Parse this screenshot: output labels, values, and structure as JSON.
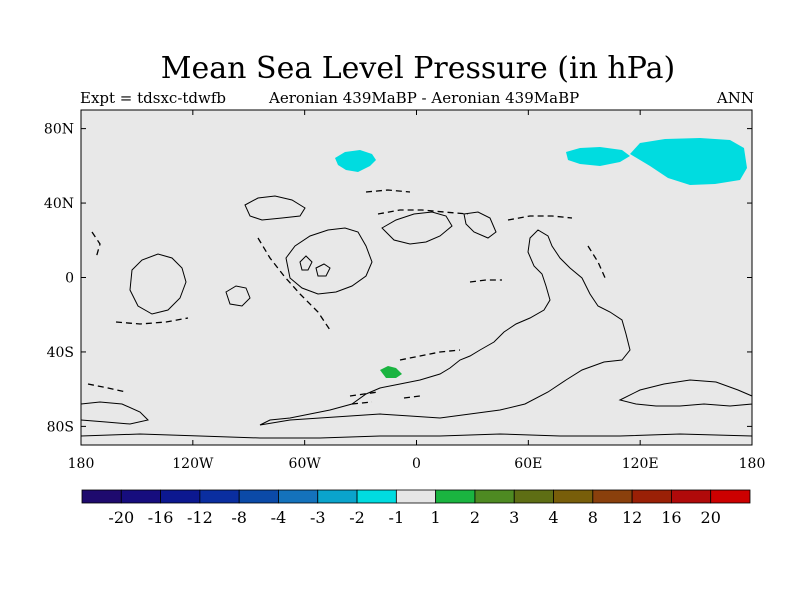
{
  "title": "Mean Sea Level Pressure (in hPa)",
  "subtitle_left": "Expt = tdsxc-tdwfb",
  "subtitle_center": "Aeronian 439MaBP - Aeronian 439MaBP",
  "subtitle_right": "ANN",
  "map": {
    "lon_ticks": [
      "180",
      "120W",
      "60W",
      "0",
      "60E",
      "120E",
      "180"
    ],
    "lat_ticks": [
      "80N",
      "40N",
      "0",
      "40S",
      "80S"
    ],
    "lat_tick_values": [
      80,
      40,
      0,
      -40,
      -80
    ],
    "ocean_color": "#e8e8e8"
  },
  "colorbar": {
    "colors": [
      "#1e0a6e",
      "#160d7e",
      "#0c1890",
      "#0a2ea0",
      "#0b4aa8",
      "#1472bc",
      "#0aa4cc",
      "#00dce0",
      "#e6e6e6",
      "#1ab440",
      "#4e8a22",
      "#5e6e14",
      "#785e0a",
      "#8a400c",
      "#9a2006",
      "#b00a0a",
      "#cc0000"
    ],
    "labels": [
      "-20",
      "-16",
      "-12",
      "-8",
      "-4",
      "-3",
      "-2",
      "-1",
      "1",
      "2",
      "3",
      "4",
      "8",
      "12",
      "16",
      "20"
    ]
  }
}
